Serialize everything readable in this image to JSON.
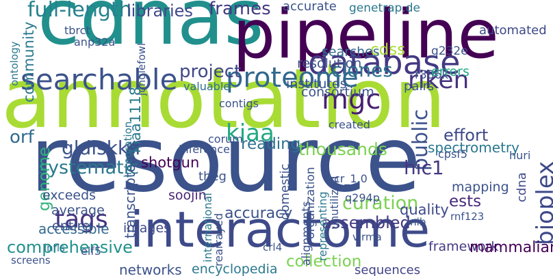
{
  "words": [
    {
      "text": "annotation",
      "color": "#a8db34"
    },
    {
      "text": "resource",
      "color": "#3b528b"
    },
    {
      "text": "cdnas",
      "color": "#21908d"
    },
    {
      "text": "pipeline",
      "color": "#440154"
    },
    {
      "text": "interactome",
      "color": "#3e4a89"
    },
    {
      "text": "database",
      "color": "#443983"
    },
    {
      "text": "searchable",
      "color": "#3b528b"
    },
    {
      "text": "proteome",
      "color": "#31688e"
    },
    {
      "text": "systematic",
      "color": "#2a788e"
    },
    {
      "text": "tags",
      "color": "#46337f"
    },
    {
      "text": "full-length",
      "color": "#26828e"
    },
    {
      "text": "libraries",
      "color": "#3e4989"
    },
    {
      "text": "frames",
      "color": "#443a83"
    },
    {
      "text": "riken",
      "color": "#46327e"
    },
    {
      "text": "project",
      "color": "#3f4788"
    },
    {
      "text": "mgc",
      "color": "#481f70"
    },
    {
      "text": "bioplex",
      "color": "#3e4989"
    },
    {
      "text": "public",
      "color": "#3b528b"
    },
    {
      "text": "hic1",
      "color": "#453781"
    },
    {
      "text": "kiaa",
      "color": "#22a884"
    },
    {
      "text": "reading",
      "color": "#2c728e"
    },
    {
      "text": "thousands",
      "color": "#7ad151"
    },
    {
      "text": "spectrometry",
      "color": "#2a788e"
    },
    {
      "text": "effort",
      "color": "#3e4989"
    },
    {
      "text": "gldlskk/r",
      "color": "#3b528b"
    },
    {
      "text": "genome",
      "color": "#2fb47c"
    },
    {
      "text": "community",
      "color": "#2a788e"
    },
    {
      "text": "orf",
      "color": "#306a8e"
    },
    {
      "text": "curation",
      "color": "#7ad151"
    },
    {
      "text": "ests",
      "color": "#482878"
    },
    {
      "text": "assembled",
      "color": "#443a83"
    },
    {
      "text": "comprehensive",
      "color": "#21918c"
    },
    {
      "text": "collection",
      "color": "#7ad151"
    },
    {
      "text": "framework",
      "color": "#443983"
    },
    {
      "text": "mammalian",
      "color": "#440154"
    },
    {
      "text": "networks",
      "color": "#3b528b"
    },
    {
      "text": "encyclopedia",
      "color": "#2a788e"
    },
    {
      "text": "sequences",
      "color": "#414487"
    },
    {
      "text": "clones",
      "color": "#2c728e"
    },
    {
      "text": "cdss",
      "color": "#a8db34"
    },
    {
      "text": "accuracy",
      "color": "#3b528b"
    },
    {
      "text": "quality",
      "color": "#3e4989"
    },
    {
      "text": "mapping",
      "color": "#3b528b"
    },
    {
      "text": "images",
      "color": "#3e4989"
    },
    {
      "text": "accessible",
      "color": "#31688e"
    },
    {
      "text": "exceeds",
      "color": "#3b528b"
    },
    {
      "text": "entire",
      "color": "#3b528b"
    },
    {
      "text": "average",
      "color": "#3b528b"
    },
    {
      "text": "soojin",
      "color": "#482475"
    },
    {
      "text": "shotgun",
      "color": "#440154"
    },
    {
      "text": "kiaa1118",
      "color": "#2a788e"
    },
    {
      "text": "cdna",
      "color": "#3e4989"
    },
    {
      "text": "searches",
      "color": "#31688e"
    },
    {
      "text": "consortium",
      "color": "#3b528b"
    },
    {
      "text": "institutes",
      "color": "#3b528b"
    },
    {
      "text": "resolution",
      "color": "#3b528b"
    },
    {
      "text": "anp32a",
      "color": "#3b528b"
    },
    {
      "text": "tbrct",
      "color": "#3b528b"
    },
    {
      "text": "genetrap.de",
      "color": "#2a788e"
    },
    {
      "text": "automated",
      "color": "#3e4989"
    },
    {
      "text": "accurate",
      "color": "#3b528b"
    },
    {
      "text": "g232e",
      "color": "#3b528b"
    },
    {
      "text": "r386k",
      "color": "#3b528b"
    },
    {
      "text": "errors",
      "color": "#22a884"
    },
    {
      "text": "pairs",
      "color": "#3b528b"
    },
    {
      "text": "valuable",
      "color": "#2c728e"
    },
    {
      "text": "contigs",
      "color": "#3b528b"
    },
    {
      "text": "corum",
      "color": "#3b528b"
    },
    {
      "text": "created",
      "color": "#3b528b"
    },
    {
      "text": "inference",
      "color": "#3b528b"
    },
    {
      "text": "theg",
      "color": "#3b528b"
    },
    {
      "text": "cr_1.0",
      "color": "#3b528b"
    },
    {
      "text": "q294p",
      "color": "#3b528b"
    },
    {
      "text": "rnf123",
      "color": "#3b528b"
    },
    {
      "text": "inib",
      "color": "#3b528b"
    },
    {
      "text": "virma",
      "color": "#3b528b"
    },
    {
      "text": "crl4",
      "color": "#3b528b"
    },
    {
      "text": "elf5",
      "color": "#3b528b"
    },
    {
      "text": "screens",
      "color": "#3b528b"
    },
    {
      "text": "infls",
      "color": "#2a788e"
    },
    {
      "text": "cpsf5",
      "color": "#3b528b"
    },
    {
      "text": "huri",
      "color": "#3b528b"
    },
    {
      "text": "transcriptome",
      "color": "#3b528b"
    },
    {
      "text": "integration",
      "color": "#2a788e"
    },
    {
      "text": "international",
      "color": "#2a788e"
    },
    {
      "text": "domestic",
      "color": "#3b528b"
    },
    {
      "text": "alignments",
      "color": "#3b528b"
    },
    {
      "text": "organization",
      "color": "#3b528b"
    },
    {
      "text": "representing",
      "color": "#2a788e"
    },
    {
      "text": "rearrayed",
      "color": "#3b528b"
    },
    {
      "text": "unutilized",
      "color": "#3b528b"
    },
    {
      "text": "ontology",
      "color": "#2a788e"
    },
    {
      "text": "junglefowl",
      "color": "#3b528b"
    }
  ]
}
